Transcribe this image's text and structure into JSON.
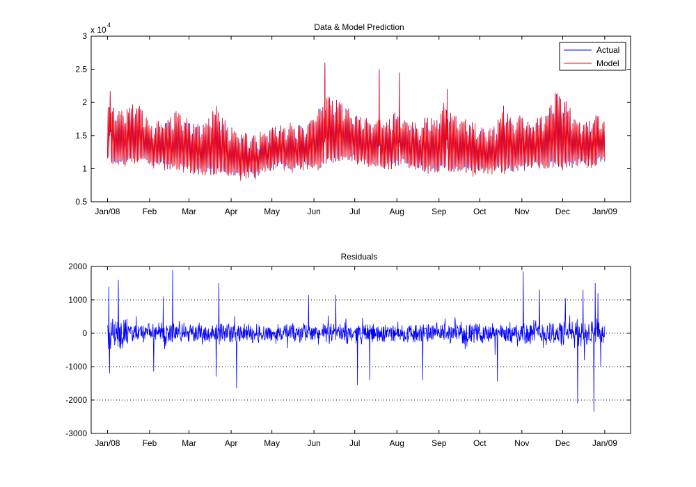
{
  "chart_data": [
    {
      "type": "line",
      "title": "Data & Model Prediction",
      "xlabel": "",
      "ylabel": "",
      "y_scale_label": {
        "base": "x 10",
        "exponent": "4"
      },
      "ylim": [
        0.5,
        3
      ],
      "yticks": [
        0.5,
        1,
        1.5,
        2,
        2.5,
        3
      ],
      "ytick_labels": [
        "0.5",
        "1",
        "1.5",
        "2",
        "2.5",
        "3"
      ],
      "xlim_days": [
        -12,
        385
      ],
      "xticks_days": [
        0,
        31,
        60,
        91,
        121,
        152,
        182,
        213,
        244,
        274,
        305,
        335,
        366
      ],
      "xtick_labels": [
        "Jan/08",
        "Feb",
        "Mar",
        "Apr",
        "May",
        "Jun",
        "Jul",
        "Aug",
        "Sep",
        "Oct",
        "Nov",
        "Dec",
        "Jan/09"
      ],
      "grid": false,
      "legend": {
        "position": "top-right",
        "entries": [
          "Actual",
          "Model"
        ]
      },
      "series": [
        {
          "name": "Actual",
          "color": "#0000ff",
          "daily_max": [
            1.9,
            1.85,
            1.8,
            1.95,
            1.9,
            1.6,
            1.65,
            1.7,
            1.8,
            1.75,
            1.65,
            1.6,
            1.7,
            1.9,
            1.65,
            1.55,
            1.5,
            1.45,
            1.45,
            1.55,
            1.6,
            1.6,
            1.6,
            1.6,
            1.65,
            1.85,
            2.0,
            2.0,
            1.9,
            1.8,
            1.75,
            1.7,
            1.7,
            1.65,
            1.8,
            1.7,
            1.7,
            1.6,
            1.75,
            1.65,
            1.95,
            1.75,
            1.7,
            1.7,
            1.55,
            1.55,
            1.55,
            1.9,
            1.7,
            1.75,
            1.65,
            1.7,
            1.75,
            2.1,
            2.05,
            1.8,
            1.65,
            1.65,
            1.75,
            1.7
          ]
        },
        {
          "name": "Model",
          "color": "#ff0000",
          "daily_min": [
            1.15,
            1.1,
            1.1,
            1.15,
            1.15,
            1.1,
            1.05,
            1.05,
            1.05,
            1.0,
            1.0,
            0.95,
            0.95,
            0.95,
            0.92,
            0.95,
            0.9,
            0.9,
            0.95,
            1.0,
            1.05,
            1.05,
            1.0,
            1.05,
            1.05,
            1.05,
            1.1,
            1.15,
            1.15,
            1.15,
            1.1,
            1.1,
            1.05,
            1.05,
            1.05,
            1.1,
            1.05,
            1.0,
            1.0,
            1.0,
            1.0,
            1.0,
            1.0,
            0.98,
            0.97,
            0.97,
            0.98,
            1.0,
            1.0,
            1.0,
            1.05,
            1.05,
            1.05,
            1.05,
            1.05,
            1.05,
            1.1,
            1.1,
            1.1,
            1.15
          ]
        }
      ],
      "annotations": [
        {
          "x_day": 160,
          "y": 2.6
        },
        {
          "x_day": 2,
          "y": 2.15
        },
        {
          "x_day": 200,
          "y": 2.5
        },
        {
          "x_day": 215,
          "y": 2.45
        },
        {
          "x_day": 250,
          "y": 2.2
        }
      ]
    },
    {
      "type": "line",
      "title": "Residuals",
      "xlabel": "",
      "ylabel": "",
      "ylim": [
        -3000,
        2000
      ],
      "yticks": [
        -3000,
        -2000,
        -1000,
        0,
        1000,
        2000
      ],
      "ytick_labels": [
        "-3000",
        "-2000",
        "-1000",
        "0",
        "1000",
        "2000"
      ],
      "xlim_days": [
        -12,
        385
      ],
      "xticks_days": [
        0,
        31,
        60,
        91,
        121,
        152,
        182,
        213,
        244,
        274,
        305,
        335,
        366
      ],
      "xtick_labels": [
        "Jan/08",
        "Feb",
        "Mar",
        "Apr",
        "May",
        "Jun",
        "Jul",
        "Aug",
        "Sep",
        "Oct",
        "Nov",
        "Dec",
        "Jan/09"
      ],
      "grid": "y-dotted",
      "series": [
        {
          "name": "Residuals",
          "color": "#0000ff"
        }
      ],
      "spikes": [
        {
          "x_day": 1,
          "y": 1400
        },
        {
          "x_day": 1.5,
          "y": -1200
        },
        {
          "x_day": 8,
          "y": 1600
        },
        {
          "x_day": 48,
          "y": 1900
        },
        {
          "x_day": 34,
          "y": -1150
        },
        {
          "x_day": 41,
          "y": 1100
        },
        {
          "x_day": 80,
          "y": -1300
        },
        {
          "x_day": 82,
          "y": 1500
        },
        {
          "x_day": 95,
          "y": -1650
        },
        {
          "x_day": 148,
          "y": 1150
        },
        {
          "x_day": 168,
          "y": 1150
        },
        {
          "x_day": 184,
          "y": -1550
        },
        {
          "x_day": 193,
          "y": -1400
        },
        {
          "x_day": 232,
          "y": -1400
        },
        {
          "x_day": 287,
          "y": -1450
        },
        {
          "x_day": 306,
          "y": 1850
        },
        {
          "x_day": 318,
          "y": 1300
        },
        {
          "x_day": 337,
          "y": 1050
        },
        {
          "x_day": 346,
          "y": -2100
        },
        {
          "x_day": 350,
          "y": 1300
        },
        {
          "x_day": 358,
          "y": -2350
        },
        {
          "x_day": 359,
          "y": 1500
        },
        {
          "x_day": 361,
          "y": 1200
        },
        {
          "x_day": 363,
          "y": -1000
        }
      ]
    }
  ]
}
